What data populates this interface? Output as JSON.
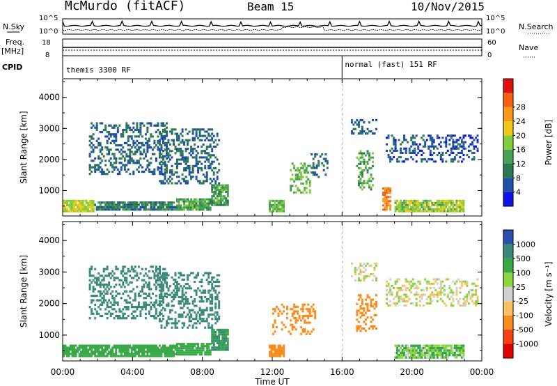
{
  "header": {
    "title": "McMurdo (fitACF)",
    "beam": "Beam 15",
    "date": "10/Nov/2015"
  },
  "panels": {
    "nsky": {
      "label": "N.Sky",
      "ticks": [
        "10^5",
        "10^0"
      ]
    },
    "nsearch": {
      "label": "N.Search",
      "ticks": [
        "10^5",
        "10^0"
      ]
    },
    "freq": {
      "label": "Freq.",
      "unit": "[MHz]",
      "ticks": [
        "18",
        "8"
      ]
    },
    "nave": {
      "label": "Nave",
      "ticks": [
        "60",
        "0"
      ]
    },
    "cpid": {
      "label": "CPID",
      "modes": [
        "themis 3300 RF",
        "normal (fast) 151 RF"
      ]
    }
  },
  "colors": {
    "power": [
      "#1010e8",
      "#1f4fa8",
      "#2d7a52",
      "#4aa054",
      "#7fcc3d",
      "#f0c818",
      "#f89a18",
      "#f86010",
      "#e01010"
    ],
    "velocity": [
      "#e00000",
      "#f84010",
      "#fa8c1e",
      "#fcc060",
      "#d0d0d0",
      "#8ad540",
      "#38a848",
      "#3a8a7a",
      "#2850b0"
    ]
  },
  "chart_data": [
    {
      "type": "heatmap",
      "ylabel": "Slant Range [km]",
      "xlabel": "Time UT",
      "x_ticks": [
        "00:00",
        "04:00",
        "08:00",
        "12:00",
        "16:00",
        "20:00",
        "00:00"
      ],
      "y_ticks": [
        "1000",
        "2000",
        "3000",
        "4000"
      ],
      "xlim_hours": [
        0,
        24
      ],
      "ylim_km": [
        180,
        4600
      ],
      "colorbar": {
        "label": "Power [dB]",
        "ticks": [
          "4",
          "8",
          "12",
          "16",
          "20",
          "24",
          "28"
        ],
        "range": [
          0,
          32
        ]
      },
      "regions": [
        {
          "t": [
            0.0,
            1.8
          ],
          "r": [
            300,
            700
          ],
          "v": 20
        },
        {
          "t": [
            1.8,
            6.5
          ],
          "r": [
            350,
            650
          ],
          "v": 10
        },
        {
          "t": [
            6.5,
            8.5
          ],
          "r": [
            350,
            750
          ],
          "v": 14
        },
        {
          "t": [
            8.5,
            9.5
          ],
          "r": [
            500,
            1200
          ],
          "v": 14
        },
        {
          "t": [
            11.8,
            12.7
          ],
          "r": [
            300,
            700
          ],
          "v": 16
        },
        {
          "t": [
            13.0,
            14.2
          ],
          "r": [
            900,
            1900
          ],
          "v": 16
        },
        {
          "t": [
            14.2,
            15.2
          ],
          "r": [
            1400,
            2200
          ],
          "v": 8
        },
        {
          "t": [
            16.8,
            17.8
          ],
          "r": [
            1000,
            2300
          ],
          "v": 14
        },
        {
          "t": [
            16.5,
            18.0
          ],
          "r": [
            2800,
            3300
          ],
          "v": 8
        },
        {
          "t": [
            18.3,
            18.8
          ],
          "r": [
            350,
            1100
          ],
          "v": 28
        },
        {
          "t": [
            19.0,
            23.0
          ],
          "r": [
            300,
            700
          ],
          "v": 18
        },
        {
          "t": [
            18.5,
            23.8
          ],
          "r": [
            1900,
            2800
          ],
          "v": 6
        },
        {
          "t": [
            5.5,
            9.0
          ],
          "r": [
            1200,
            3000
          ],
          "v": 8
        },
        {
          "t": [
            1.5,
            6.0
          ],
          "r": [
            1500,
            3200
          ],
          "v": 8
        }
      ]
    },
    {
      "type": "heatmap",
      "ylabel": "Slant Range [km]",
      "xlabel": "Time UT",
      "x_ticks": [
        "00:00",
        "04:00",
        "08:00",
        "12:00",
        "16:00",
        "20:00",
        "00:00"
      ],
      "y_ticks": [
        "1000",
        "2000",
        "3000",
        "4000"
      ],
      "xlim_hours": [
        0,
        24
      ],
      "ylim_km": [
        180,
        4600
      ],
      "colorbar": {
        "label": "Velocity [m s^-1]",
        "ticks": [
          "-1000",
          "-500",
          "-100",
          "-25",
          "25",
          "100",
          "500",
          "1000"
        ]
      },
      "regions": [
        {
          "t": [
            0.0,
            6.5
          ],
          "r": [
            300,
            700
          ],
          "v": 200
        },
        {
          "t": [
            6.5,
            8.5
          ],
          "r": [
            350,
            750
          ],
          "v": 200
        },
        {
          "t": [
            8.5,
            9.5
          ],
          "r": [
            500,
            1200
          ],
          "v": 500
        },
        {
          "t": [
            11.8,
            12.7
          ],
          "r": [
            300,
            700
          ],
          "v": -200
        },
        {
          "t": [
            12.0,
            14.5
          ],
          "r": [
            1000,
            2000
          ],
          "v": -300
        },
        {
          "t": [
            16.8,
            18.0
          ],
          "r": [
            1100,
            2300
          ],
          "v": -300
        },
        {
          "t": [
            16.5,
            18.0
          ],
          "r": [
            2700,
            3300
          ],
          "v": 0
        },
        {
          "t": [
            19.0,
            23.0
          ],
          "r": [
            250,
            700
          ],
          "v": 100
        },
        {
          "t": [
            18.5,
            23.8
          ],
          "r": [
            1900,
            2800
          ],
          "v": 0
        },
        {
          "t": [
            5.5,
            9.0
          ],
          "r": [
            1200,
            3000
          ],
          "v": 700
        },
        {
          "t": [
            1.5,
            6.0
          ],
          "r": [
            1500,
            3200
          ],
          "v": 700
        }
      ]
    }
  ]
}
